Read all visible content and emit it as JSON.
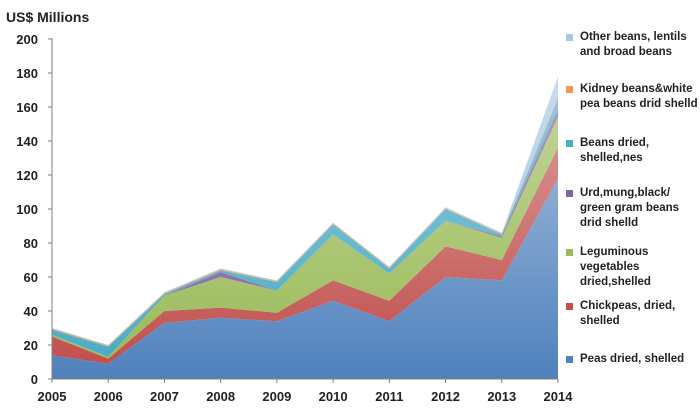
{
  "chart_data": {
    "type": "area",
    "stacked": true,
    "title": "",
    "ylabel": "US$ Millions",
    "xlabel": "",
    "ylim": [
      0,
      200
    ],
    "yticks": [
      0,
      20,
      40,
      60,
      80,
      100,
      120,
      140,
      160,
      180,
      200
    ],
    "grid": false,
    "legend_position": "right",
    "categories": [
      "2005",
      "2006",
      "2007",
      "2008",
      "2009",
      "2010",
      "2011",
      "2012",
      "2013",
      "2014"
    ],
    "series": [
      {
        "name": "Peas dried, shelled",
        "color": "#4f81bd",
        "values": [
          14,
          9,
          33,
          36,
          34,
          46,
          34,
          60,
          58,
          118
        ]
      },
      {
        "name": "Chickpeas, dried, shelled",
        "color": "#c0504d",
        "values": [
          11,
          3,
          7,
          6,
          5,
          12,
          12,
          18,
          12,
          18
        ]
      },
      {
        "name": "Leguminous vegetables dried,shelled",
        "color": "#9bbb59",
        "values": [
          1,
          1,
          9,
          18,
          13,
          27,
          16,
          15,
          13,
          18
        ]
      },
      {
        "name": "Urd,mung,black/ green gram beans drid shelld",
        "color": "#8064a2",
        "values": [
          0,
          0,
          0,
          3,
          0,
          0,
          0,
          0,
          1,
          5
        ]
      },
      {
        "name": "Beans dried, shelled,nes",
        "color": "#4bacc6",
        "values": [
          3,
          6,
          1,
          1,
          5,
          6,
          3,
          7,
          1,
          6
        ]
      },
      {
        "name": "Kidney beans&white pea beans drid shelld",
        "color": "#f79646",
        "values": [
          0.5,
          0.5,
          0.5,
          0.5,
          0.5,
          0.5,
          0.5,
          0.5,
          0.5,
          1
        ]
      },
      {
        "name": "Other beans, lentils and broad beans",
        "color": "#a5c8e8",
        "values": [
          0.5,
          0.5,
          0.5,
          0.5,
          0.5,
          0.5,
          0.5,
          0.5,
          0.5,
          12
        ]
      }
    ]
  }
}
